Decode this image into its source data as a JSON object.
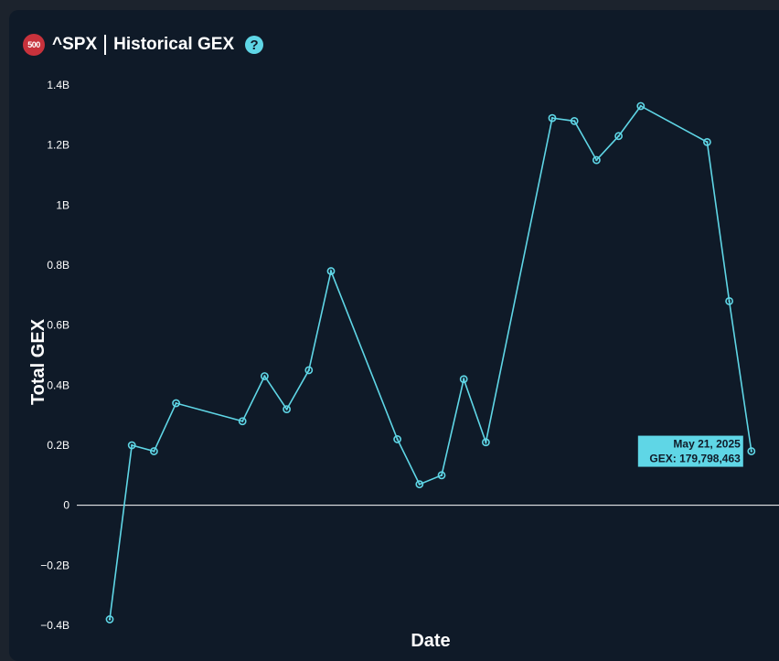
{
  "header": {
    "badge": "500",
    "symbol": "^SPX",
    "title": "Historical GEX",
    "help": "?"
  },
  "tooltip": {
    "date": "May 21, 2025",
    "value": "GEX: 179,798,463"
  },
  "colors": {
    "background": "#0f1a28",
    "line": "#5fd6e6",
    "badge": "#c8323c",
    "zero_line": "#ffffff"
  },
  "chart_data": {
    "type": "line",
    "xlabel": "Date",
    "ylabel": "Total GEX",
    "ylim": [
      -0.4,
      1.4
    ],
    "y_unit": "B",
    "y_ticks": [
      "1.4B",
      "1.2B",
      "1B",
      "0.8B",
      "0.6B",
      "0.4B",
      "0.2B",
      "0",
      "−0.2B",
      "−0.4B"
    ],
    "y_tick_values": [
      1.4,
      1.2,
      1.0,
      0.8,
      0.6,
      0.4,
      0.2,
      0,
      -0.2,
      -0.4
    ],
    "grid": false,
    "legend": "none",
    "series": [
      {
        "x": [
          0,
          1,
          2,
          3,
          6,
          7,
          8,
          9,
          10,
          13,
          14,
          15,
          16,
          17,
          20,
          21,
          22,
          23,
          24,
          27,
          28,
          29
        ],
        "values": [
          -0.38,
          0.2,
          0.18,
          0.34,
          0.28,
          0.43,
          0.32,
          0.45,
          0.78,
          0.22,
          0.07,
          0.1,
          0.42,
          0.21,
          1.29,
          1.28,
          1.15,
          1.23,
          1.33,
          1.21,
          0.68,
          0.18
        ]
      }
    ]
  }
}
